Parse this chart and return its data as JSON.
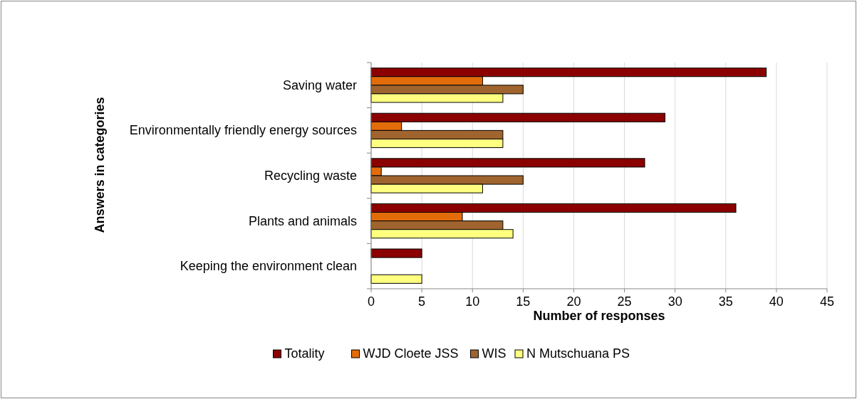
{
  "chart_data": {
    "type": "bar",
    "orientation": "horizontal",
    "xlabel": "Number of responses",
    "ylabel": "Answers in categories",
    "categories": [
      "Saving water",
      "Environmentally friendly energy sources",
      "Recycling waste",
      "Plants and animals",
      "Keeping the environment clean"
    ],
    "series": [
      {
        "name": "Totality",
        "color": "#8b0000",
        "values": [
          39,
          29,
          27,
          36,
          5
        ]
      },
      {
        "name": "WJD Cloete JSS",
        "color": "#e36c0a",
        "values": [
          11,
          3,
          1,
          9,
          null
        ]
      },
      {
        "name": "WIS",
        "color": "#a0642e",
        "values": [
          15,
          13,
          15,
          13,
          null
        ]
      },
      {
        "name": "N Mutschuana PS",
        "color": "#ffff80",
        "values": [
          13,
          13,
          11,
          14,
          5
        ]
      }
    ],
    "xlim": [
      0,
      45
    ],
    "xticks": [
      0,
      5,
      10,
      15,
      20,
      25,
      30,
      35,
      40,
      45
    ],
    "grid": "x",
    "legend": "bottom"
  }
}
